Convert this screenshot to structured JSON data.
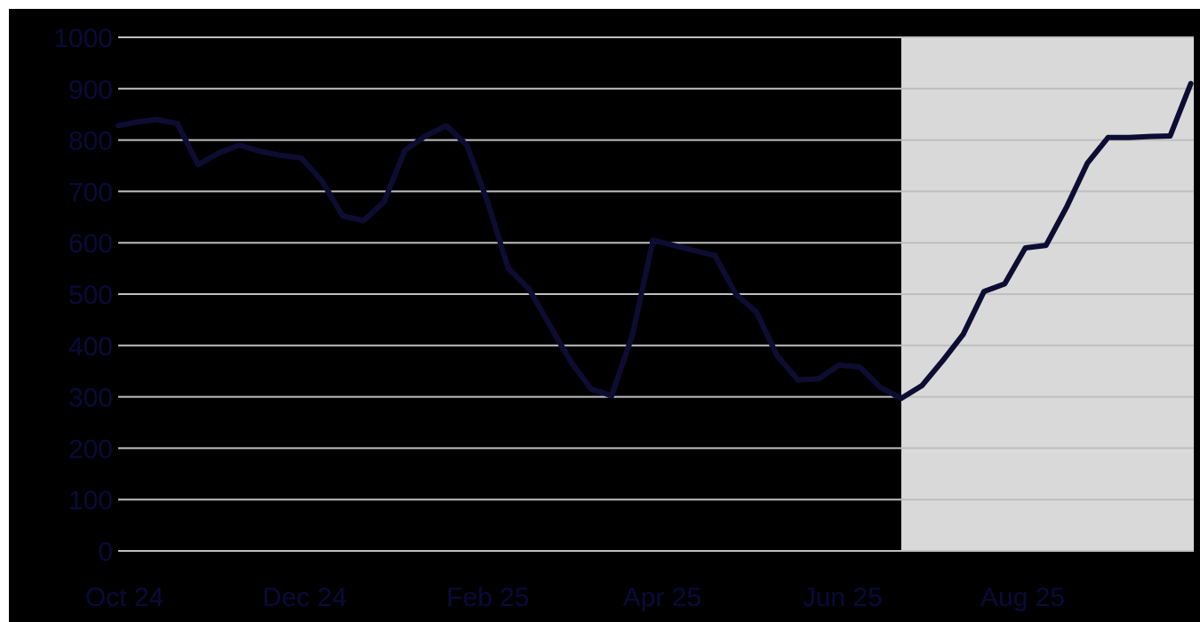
{
  "chart_data": {
    "type": "line",
    "title": "",
    "xlabel": "",
    "ylabel": "",
    "ylim": [
      0,
      1000
    ],
    "yticks": [
      0,
      100,
      200,
      300,
      400,
      500,
      600,
      700,
      800,
      900,
      1000
    ],
    "xlim": [
      "2024-10-01",
      "2025-09-30"
    ],
    "xtick_labels": [
      {
        "date": "2024-10-01",
        "label": "Oct 24"
      },
      {
        "date": "2024-12-01",
        "label": "Dec 24"
      },
      {
        "date": "2025-02-01",
        "label": "Feb 25"
      },
      {
        "date": "2025-04-01",
        "label": "Apr 25"
      },
      {
        "date": "2025-06-01",
        "label": "Jun 25"
      },
      {
        "date": "2025-08-01",
        "label": "Aug 25"
      }
    ],
    "grid": true,
    "shaded_region": {
      "from": "2025-06-23",
      "to": "2025-09-30"
    },
    "series": [
      {
        "x": [
          "2024-10-01",
          "2024-10-07",
          "2024-10-14",
          "2024-10-21",
          "2024-10-28",
          "2024-11-04",
          "2024-11-11",
          "2024-11-18",
          "2024-11-25",
          "2024-12-02",
          "2024-12-09",
          "2024-12-16",
          "2024-12-23",
          "2024-12-30",
          "2025-01-06",
          "2025-01-13",
          "2025-01-20",
          "2025-01-27",
          "2025-02-03",
          "2025-02-10",
          "2025-02-17",
          "2025-02-24",
          "2025-03-03",
          "2025-03-10",
          "2025-03-17",
          "2025-03-24",
          "2025-03-31",
          "2025-04-07",
          "2025-04-14",
          "2025-04-21",
          "2025-04-28",
          "2025-05-05",
          "2025-05-12",
          "2025-05-19",
          "2025-05-26",
          "2025-06-02",
          "2025-06-09",
          "2025-06-16",
          "2025-06-23",
          "2025-06-30",
          "2025-07-07",
          "2025-07-14",
          "2025-07-21",
          "2025-07-28",
          "2025-08-04",
          "2025-08-11",
          "2025-08-18",
          "2025-08-25",
          "2025-09-01",
          "2025-09-08",
          "2025-09-15",
          "2025-09-22",
          "2025-09-29"
        ],
        "values": [
          828,
          835,
          840,
          832,
          752,
          775,
          790,
          778,
          770,
          765,
          720,
          652,
          643,
          680,
          780,
          808,
          828,
          790,
          680,
          550,
          510,
          440,
          370,
          315,
          302,
          420,
          605,
          595,
          585,
          575,
          500,
          465,
          380,
          333,
          335,
          362,
          358,
          318,
          297,
          322,
          370,
          422,
          505,
          520,
          590,
          595,
          670,
          755,
          805,
          805,
          807,
          808,
          910
        ]
      }
    ]
  }
}
